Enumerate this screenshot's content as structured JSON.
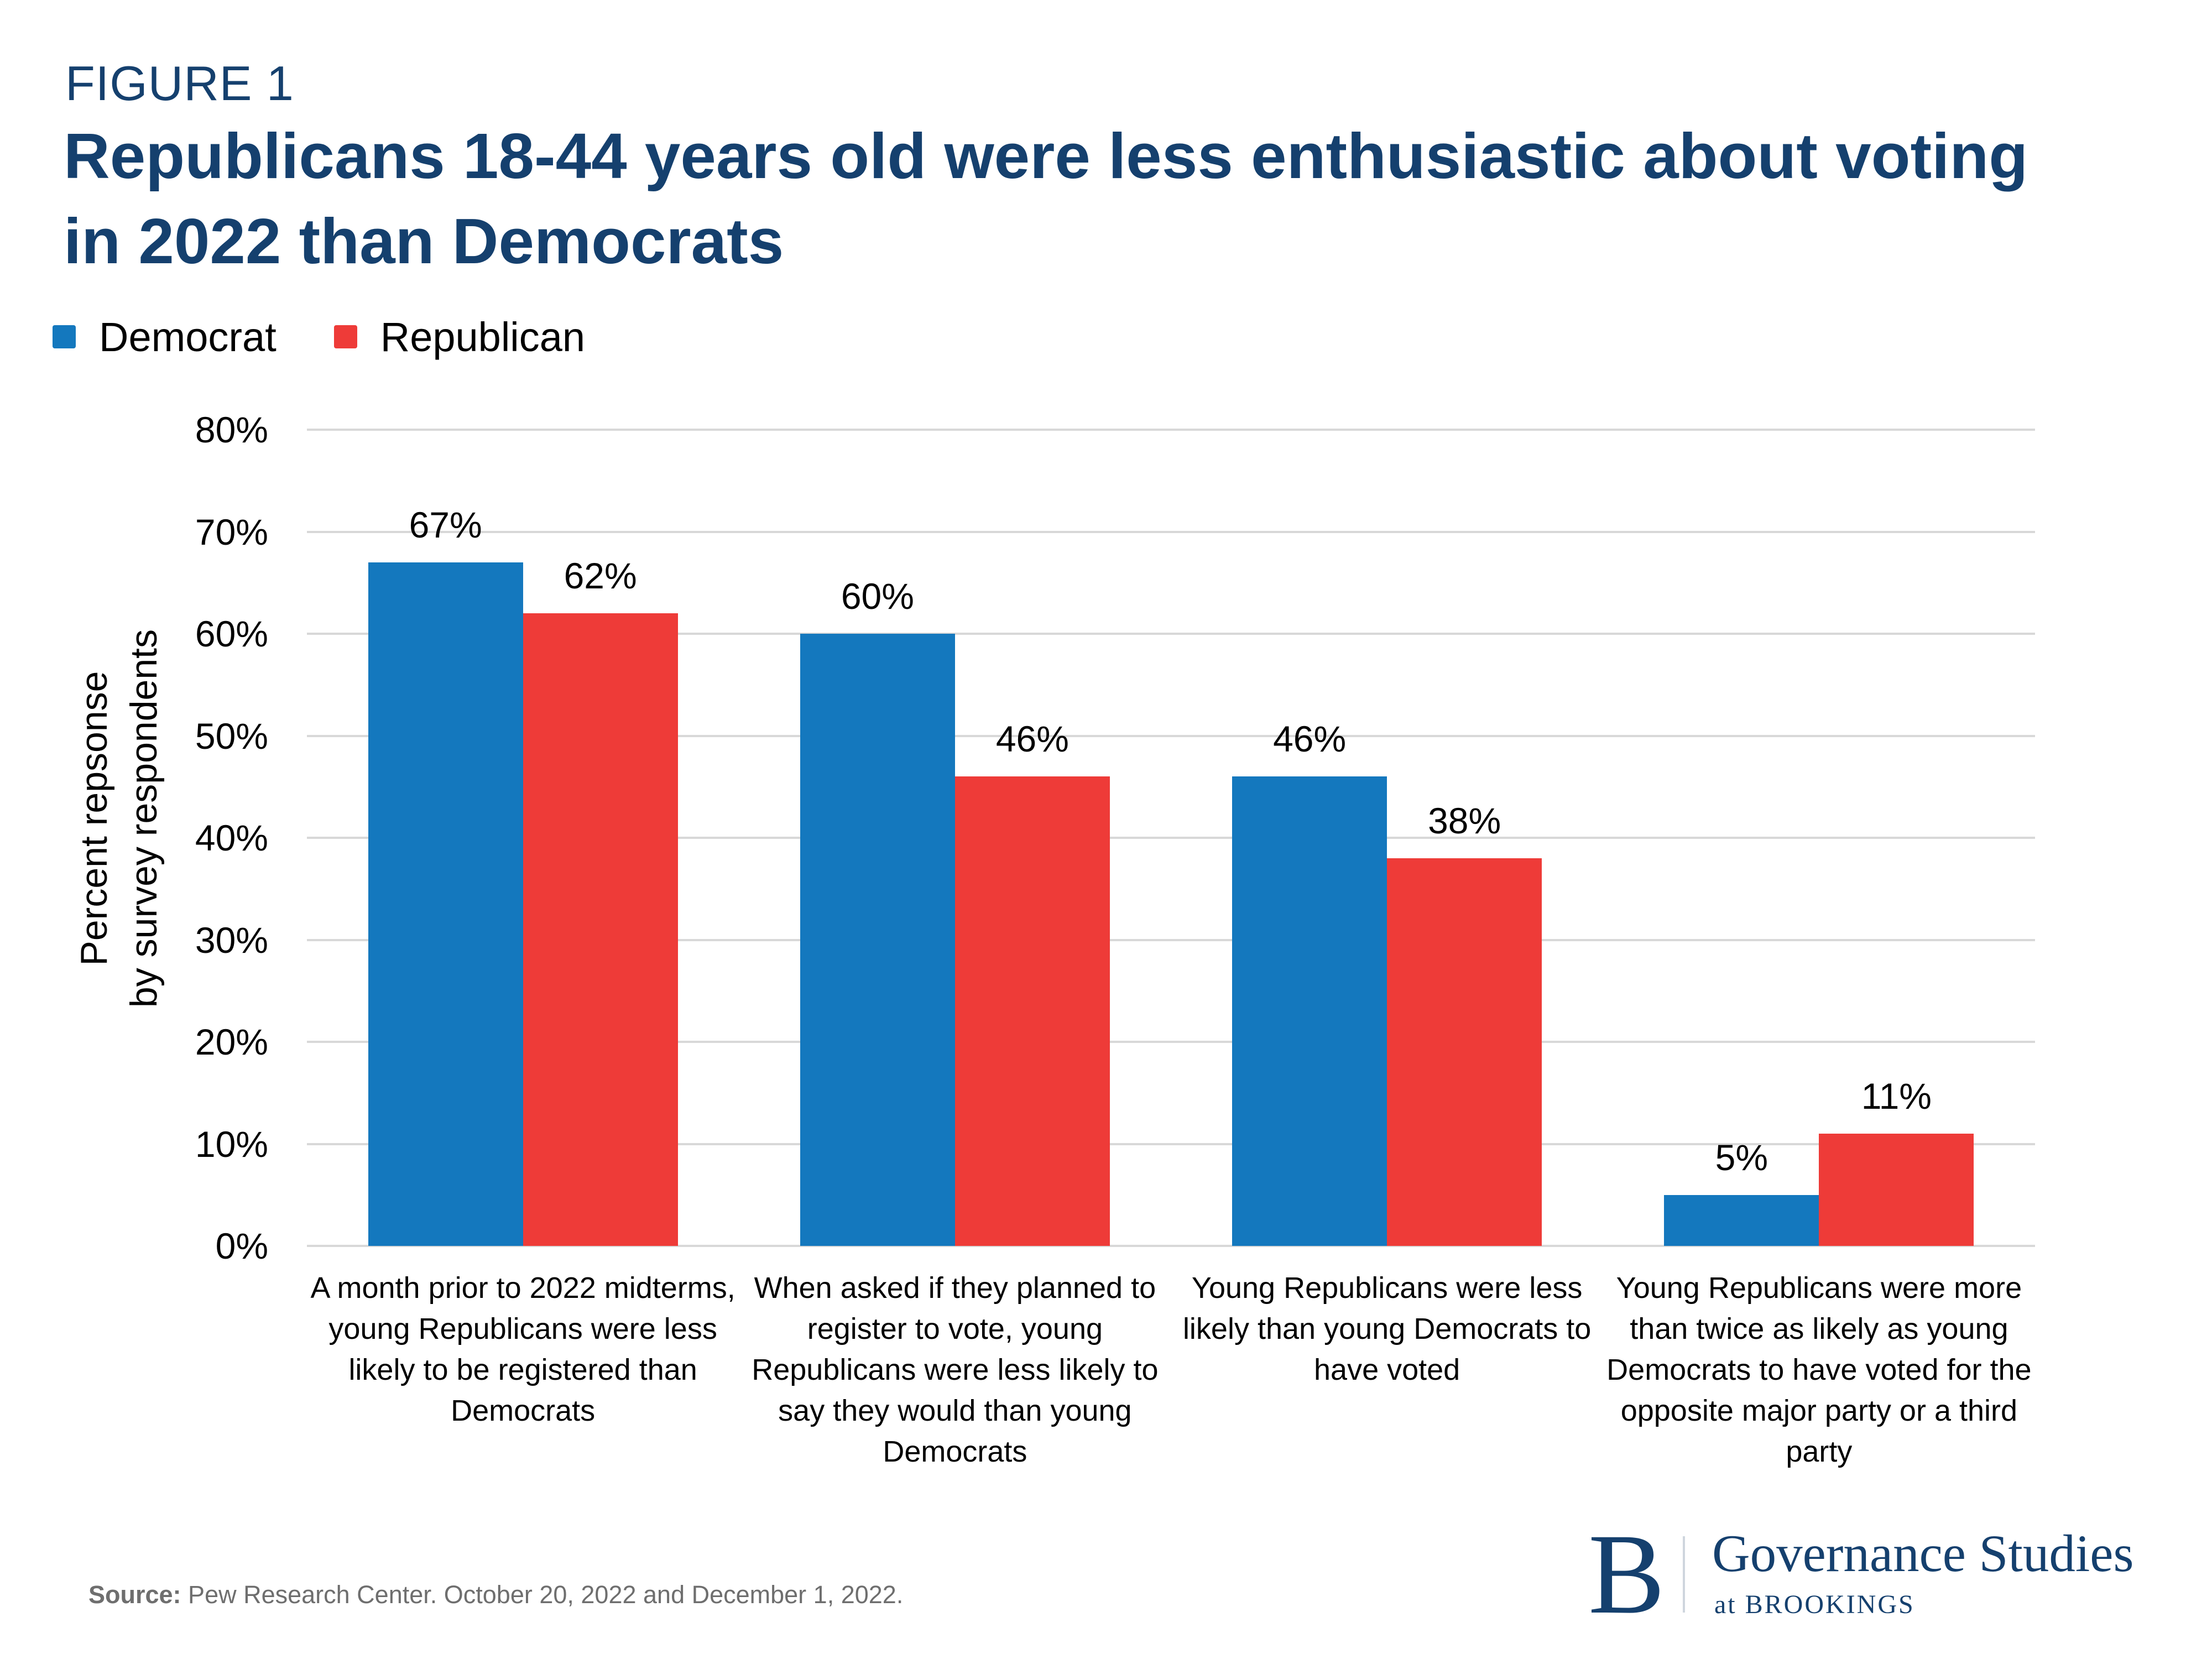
{
  "figure_label": "FIGURE 1",
  "title_lines": [
    "Republicans 18-44 years old were less enthusiastic about voting",
    "in 2022 than Democrats"
  ],
  "legend": {
    "items": [
      {
        "label": "Democrat",
        "color": "#1478BE"
      },
      {
        "label": "Republican",
        "color": "#EE3B38"
      }
    ]
  },
  "chart_data": {
    "type": "bar",
    "title": "Republicans 18-44 years old were less enthusiastic about voting in 2022 than Democrats",
    "categories": [
      "A month prior to 2022 midterms, young Republicans were less likely to be registered than Democrats",
      "When asked if they planned to register to vote, young Republicans were less likely to say they would than young Democrats",
      "Young Republicans were less likely than young Democrats to have voted",
      "Young Republicans were more than twice as likely as young Democrats to have voted for the opposite major party or a third party"
    ],
    "series": [
      {
        "name": "Democrat",
        "color": "#1478BE",
        "values": [
          67,
          60,
          46,
          5
        ]
      },
      {
        "name": "Republican",
        "color": "#EE3B38",
        "values": [
          62,
          46,
          38,
          11
        ]
      }
    ],
    "value_label_suffix": "%",
    "ylabel": "Percent repsonse by survey respondents",
    "ylabel_lines": [
      "Percent repsonse",
      "by survey respondents"
    ],
    "yticks": [
      0,
      10,
      20,
      30,
      40,
      50,
      60,
      70,
      80
    ],
    "ytick_suffix": "%",
    "ylim": [
      0,
      80
    ],
    "grid": true,
    "legend_position": "top-left"
  },
  "source": {
    "label": "Source:",
    "text": " Pew Research Center. October 20, 2022 and December 1, 2022."
  },
  "logo": {
    "initial": "B",
    "line1": "Governance Studies",
    "line2": "at BROOKINGS"
  },
  "colors": {
    "navy": "#15406E",
    "bar_blue": "#1478BE",
    "bar_red": "#EE3B38",
    "grid": "#D8D8D8",
    "source_gray": "#6E6E6E",
    "logo_divider": "#CFD6DE"
  }
}
